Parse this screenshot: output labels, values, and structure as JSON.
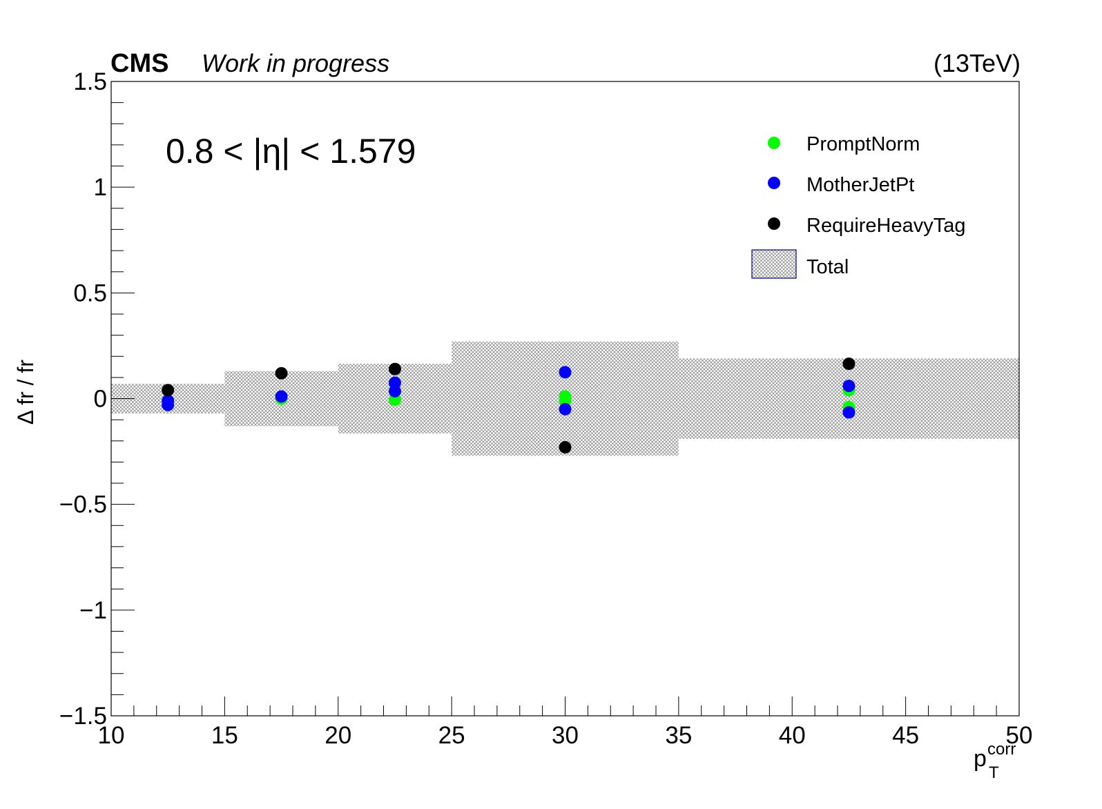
{
  "header": {
    "experiment": "CMS",
    "status": "Work in progress",
    "energy": "(13TeV)"
  },
  "region_label": "0.8 < |η| < 1.579",
  "colors": {
    "PromptNorm": "#00ff00",
    "MotherJetPt": "#0000ff",
    "RequireHeavyTag": "#000000",
    "total_band": "#808080",
    "total_legend_border": "#000080"
  },
  "chart_data": {
    "type": "scatter",
    "xlabel_main": "p",
    "xlabel_sub": "T",
    "xlabel_sup": "corr",
    "ylabel": "Δ fr / fr",
    "xlim": [
      10,
      50
    ],
    "ylim": [
      -1.5,
      1.5
    ],
    "xticks": [
      10,
      15,
      20,
      25,
      30,
      35,
      40,
      45,
      50
    ],
    "xtick_labels": [
      "10",
      "15",
      "20",
      "25",
      "30",
      "35",
      "40",
      "45",
      "50"
    ],
    "yticks": [
      -1.5,
      -1,
      -0.5,
      0,
      0.5,
      1,
      1.5
    ],
    "ytick_labels": [
      "−1.5",
      "−1",
      "−0.5",
      "0",
      "0.5",
      "1",
      "1.5"
    ],
    "legend_position": "top-right",
    "bins": [
      [
        10,
        15
      ],
      [
        15,
        20
      ],
      [
        20,
        25
      ],
      [
        25,
        35
      ],
      [
        35,
        50
      ]
    ],
    "total_band": [
      0.07,
      0.13,
      0.165,
      0.27,
      0.19
    ],
    "series": [
      {
        "name": "PromptNorm",
        "color": "#00ff00",
        "points": [
          [
            12.5,
            -0.01
          ],
          [
            17.5,
            0.0
          ],
          [
            22.5,
            -0.005
          ],
          [
            30,
            0.01
          ],
          [
            30,
            -0.01
          ],
          [
            42.5,
            0.04
          ],
          [
            42.5,
            -0.04
          ]
        ]
      },
      {
        "name": "MotherJetPt",
        "color": "#0000ff",
        "points": [
          [
            12.5,
            -0.01
          ],
          [
            12.5,
            -0.03
          ],
          [
            17.5,
            0.01
          ],
          [
            22.5,
            0.075
          ],
          [
            22.5,
            0.035
          ],
          [
            30,
            0.125
          ],
          [
            30,
            -0.05
          ],
          [
            42.5,
            0.06
          ],
          [
            42.5,
            -0.065
          ]
        ]
      },
      {
        "name": "RequireHeavyTag",
        "color": "#000000",
        "points": [
          [
            12.5,
            0.04
          ],
          [
            17.5,
            0.12
          ],
          [
            22.5,
            0.14
          ],
          [
            30,
            -0.23
          ],
          [
            42.5,
            0.165
          ]
        ]
      }
    ],
    "total_label": "Total"
  }
}
